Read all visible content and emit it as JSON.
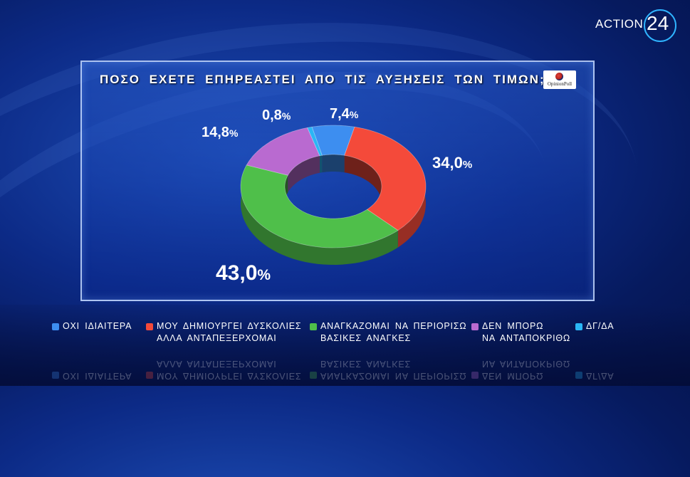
{
  "brand": {
    "text": "ACTION",
    "number": "24"
  },
  "poll_logo": {
    "text": "OpinionPoll"
  },
  "chart_data": {
    "type": "pie",
    "title": "ΠΟΣΟ ΕΧΕΤΕ ΕΠΗΡΕΑΣΤΕΙ ΑΠΟ ΤΙΣ ΑΥΞΗΣΕΙΣ ΤΩΝ ΤΙΜΩΝ;",
    "donut": true,
    "unit": "%",
    "slices": [
      {
        "label": "ΟΧΙ ΙΔΙΑΙΤΕΡΑ",
        "value": 7.4,
        "display": "7,4",
        "color": "#3d8ef0"
      },
      {
        "label": "ΜΟΥ ΔΗΜΙΟΥΡΓΕΙ ΔΥΣΚΟΛΙΕΣ\nΑΛΛΑ ΑΝΤΑΠΕΞΕΡΧΟΜΑΙ",
        "value": 34.0,
        "display": "34,0",
        "color": "#f44a3a"
      },
      {
        "label": "ΑΝΑΓΚΑΖΟΜΑΙ ΝΑ ΠΕΡΙΟΡΙΣΩ\nΒΑΣΙΚΕΣ ΑΝΑΓΚΕΣ",
        "value": 43.0,
        "display": "43,0",
        "color": "#4fbf4a"
      },
      {
        "label": "ΔΕΝ ΜΠΟΡΩ\nΝΑ ΑΝΤΑΠΟΚΡΙΘΩ",
        "value": 14.8,
        "display": "14,8",
        "color": "#b96ad0"
      },
      {
        "label": "ΔΓ/ΔΑ",
        "value": 0.8,
        "display": "0,8",
        "color": "#2ab6f5"
      }
    ],
    "legend": "bottom"
  }
}
